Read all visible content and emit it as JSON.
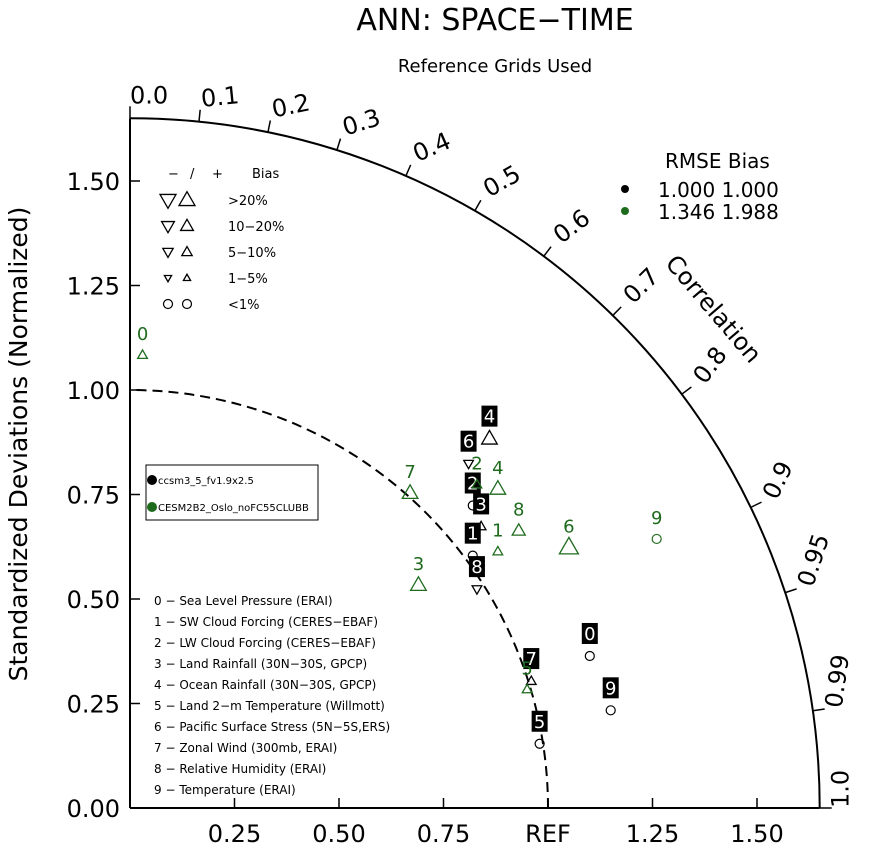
{
  "chart_data": {
    "type": "scatter",
    "title": "ANN: SPACE−TIME",
    "subtitle": "Reference Grids Used",
    "ylabel": "Standardized Deviations (Normalized)",
    "angle_label": "Correlation",
    "ref_label": "REF",
    "ylim": [
      0,
      1.65
    ],
    "xlim": [
      0,
      1.65
    ],
    "y_ticks": [
      "0.00",
      "0.25",
      "0.50",
      "0.75",
      "1.00",
      "1.25",
      "1.50"
    ],
    "x_ticks": [
      "0.25",
      "0.50",
      "0.75",
      "REF",
      "1.25",
      "1.50"
    ],
    "correlation_ticks": [
      {
        "r": 0.0,
        "label": "0.0"
      },
      {
        "r": 0.1,
        "label": "0.1"
      },
      {
        "r": 0.2,
        "label": "0.2"
      },
      {
        "r": 0.3,
        "label": "0.3"
      },
      {
        "r": 0.4,
        "label": "0.4"
      },
      {
        "r": 0.5,
        "label": "0.5"
      },
      {
        "r": 0.6,
        "label": "0.6"
      },
      {
        "r": 0.7,
        "label": "0.7"
      },
      {
        "r": 0.8,
        "label": "0.8"
      },
      {
        "r": 0.9,
        "label": "0.9"
      },
      {
        "r": 0.95,
        "label": "0.95"
      },
      {
        "r": 0.99,
        "label": "0.99"
      },
      {
        "r": 1.0,
        "label": "1.0"
      }
    ],
    "bias_legend": {
      "header_minus": "−",
      "header_slash": "/",
      "header_plus": "+",
      "header_label": "Bias",
      "rows": [
        {
          "label": ">20%",
          "size": 1.0,
          "shape": "triangle"
        },
        {
          "label": "10−20%",
          "size": 0.8,
          "shape": "triangle"
        },
        {
          "label": "5−10%",
          "size": 0.65,
          "shape": "triangle"
        },
        {
          "label": "1−5%",
          "size": 0.45,
          "shape": "triangle"
        },
        {
          "label": "<1%",
          "size": 0.5,
          "shape": "circle"
        }
      ]
    },
    "rmse_legend": {
      "header": "RMSE  Bias",
      "rows": [
        {
          "color": "#000000",
          "rmse": "1.000",
          "bias": "1.000"
        },
        {
          "color": "#1e6b1e",
          "rmse": "1.346",
          "bias": "1.988"
        }
      ]
    },
    "case_legend": [
      {
        "name": "ccsm3_5_fv1.9x2.5",
        "color": "#000000"
      },
      {
        "name": "CESM2B2_Oslo_noFC55CLUBB",
        "color": "#1e6b1e"
      }
    ],
    "variables": [
      "0 − Sea Level Pressure (ERAI)",
      "1 − SW Cloud Forcing (CERES−EBAF)",
      "2 − LW Cloud Forcing (CERES−EBAF)",
      "3 − Land Rainfall (30N−30S, GPCP)",
      "4 − Ocean Rainfall (30N−30S, GPCP)",
      "5 − Land 2−m Temperature (Willmott)",
      "6 − Pacific Surface Stress (5N−5S,ERS)",
      "7 − Zonal Wind (300mb, ERAI)",
      "8 − Relative Humidity (ERAI)",
      "9 − Temperature (ERAI)"
    ],
    "series": [
      {
        "name": "ccsm3_5_fv1.9x2.5",
        "color": "#000000",
        "label_style": "boxed",
        "points": [
          {
            "id": "0",
            "x": 1.1,
            "y": 0.39,
            "bias_shape": "circle",
            "bias_size": 0.5
          },
          {
            "id": "1",
            "x": 0.82,
            "y": 0.63,
            "bias_shape": "circle",
            "bias_size": 0.5
          },
          {
            "id": "2",
            "x": 0.82,
            "y": 0.75,
            "bias_shape": "circle",
            "bias_size": 0.5
          },
          {
            "id": "3",
            "x": 0.84,
            "y": 0.7,
            "bias_shape": "up",
            "bias_size": 0.45
          },
          {
            "id": "4",
            "x": 0.86,
            "y": 0.91,
            "bias_shape": "up",
            "bias_size": 0.8
          },
          {
            "id": "5",
            "x": 0.98,
            "y": 0.18,
            "bias_shape": "circle",
            "bias_size": 0.5
          },
          {
            "id": "6",
            "x": 0.81,
            "y": 0.85,
            "bias_shape": "down",
            "bias_size": 0.45
          },
          {
            "id": "7",
            "x": 0.96,
            "y": 0.33,
            "bias_shape": "up",
            "bias_size": 0.45
          },
          {
            "id": "8",
            "x": 0.83,
            "y": 0.55,
            "bias_shape": "down",
            "bias_size": 0.45
          },
          {
            "id": "9",
            "x": 1.15,
            "y": 0.26,
            "bias_shape": "circle",
            "bias_size": 0.5
          }
        ]
      },
      {
        "name": "CESM2B2_Oslo_noFC55CLUBB",
        "color": "#1e6b1e",
        "label_style": "plain",
        "points": [
          {
            "id": "0",
            "x": 0.03,
            "y": 1.11,
            "bias_shape": "up",
            "bias_size": 0.45
          },
          {
            "id": "1",
            "x": 0.88,
            "y": 0.64,
            "bias_shape": "up",
            "bias_size": 0.45
          },
          {
            "id": "2",
            "x": 0.83,
            "y": 0.8,
            "bias_shape": "up",
            "bias_size": 0.45
          },
          {
            "id": "3",
            "x": 0.69,
            "y": 0.56,
            "bias_shape": "up",
            "bias_size": 0.8
          },
          {
            "id": "4",
            "x": 0.88,
            "y": 0.79,
            "bias_shape": "up",
            "bias_size": 0.8
          },
          {
            "id": "5",
            "x": 0.95,
            "y": 0.31,
            "bias_shape": "up",
            "bias_size": 0.45
          },
          {
            "id": "6",
            "x": 1.05,
            "y": 0.65,
            "bias_shape": "up",
            "bias_size": 1.0
          },
          {
            "id": "7",
            "x": 0.67,
            "y": 0.78,
            "bias_shape": "up",
            "bias_size": 0.8
          },
          {
            "id": "8",
            "x": 0.93,
            "y": 0.69,
            "bias_shape": "up",
            "bias_size": 0.65
          },
          {
            "id": "9",
            "x": 1.26,
            "y": 0.67,
            "bias_shape": "circle",
            "bias_size": 0.5
          }
        ]
      }
    ]
  }
}
